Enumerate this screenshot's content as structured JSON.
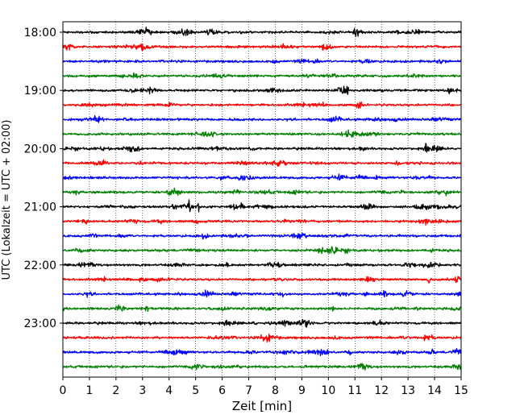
{
  "chart_data": {
    "type": "line",
    "title": "",
    "xlabel": "Zeit  [min]",
    "ylabel": "UTC (Lokalzeit = UTC + 02:00)",
    "xlim": [
      0,
      15
    ],
    "x_ticks": [
      0,
      1,
      2,
      3,
      4,
      5,
      6,
      7,
      8,
      9,
      10,
      11,
      12,
      13,
      14,
      15
    ],
    "y_tick_labels": [
      "18:00",
      "19:00",
      "20:00",
      "21:00",
      "22:00",
      "23:00"
    ],
    "grid": "vertical dotted",
    "trace_interval_minutes": 15,
    "trace_color_cycle": [
      "#000000",
      "#ff0000",
      "#0000ff",
      "#008000"
    ],
    "series": [
      {
        "start": "18:00",
        "color": "#000000"
      },
      {
        "start": "18:15",
        "color": "#ff0000"
      },
      {
        "start": "18:30",
        "color": "#0000ff"
      },
      {
        "start": "18:45",
        "color": "#008000"
      },
      {
        "start": "19:00",
        "color": "#000000"
      },
      {
        "start": "19:15",
        "color": "#ff0000"
      },
      {
        "start": "19:30",
        "color": "#0000ff"
      },
      {
        "start": "19:45",
        "color": "#008000"
      },
      {
        "start": "20:00",
        "color": "#000000"
      },
      {
        "start": "20:15",
        "color": "#ff0000"
      },
      {
        "start": "20:30",
        "color": "#0000ff"
      },
      {
        "start": "20:45",
        "color": "#008000"
      },
      {
        "start": "21:00",
        "color": "#000000"
      },
      {
        "start": "21:15",
        "color": "#ff0000"
      },
      {
        "start": "21:30",
        "color": "#0000ff"
      },
      {
        "start": "21:45",
        "color": "#008000"
      },
      {
        "start": "22:00",
        "color": "#000000"
      },
      {
        "start": "22:15",
        "color": "#ff0000"
      },
      {
        "start": "22:30",
        "color": "#0000ff"
      },
      {
        "start": "22:45",
        "color": "#008000"
      },
      {
        "start": "23:00",
        "color": "#000000"
      },
      {
        "start": "23:15",
        "color": "#ff0000"
      },
      {
        "start": "23:30",
        "color": "#0000ff"
      },
      {
        "start": "23:45",
        "color": "#008000"
      }
    ],
    "events": [
      {
        "trace": "21:00",
        "minute": 4.75
      },
      {
        "trace": "21:00",
        "minute": 5.1
      },
      {
        "trace": "22:15",
        "minute": 13.8
      },
      {
        "trace": "21:30",
        "minute": 6.9
      },
      {
        "trace": "19:00",
        "minute": 10.7
      },
      {
        "trace": "20:00",
        "minute": 13.7
      }
    ]
  }
}
